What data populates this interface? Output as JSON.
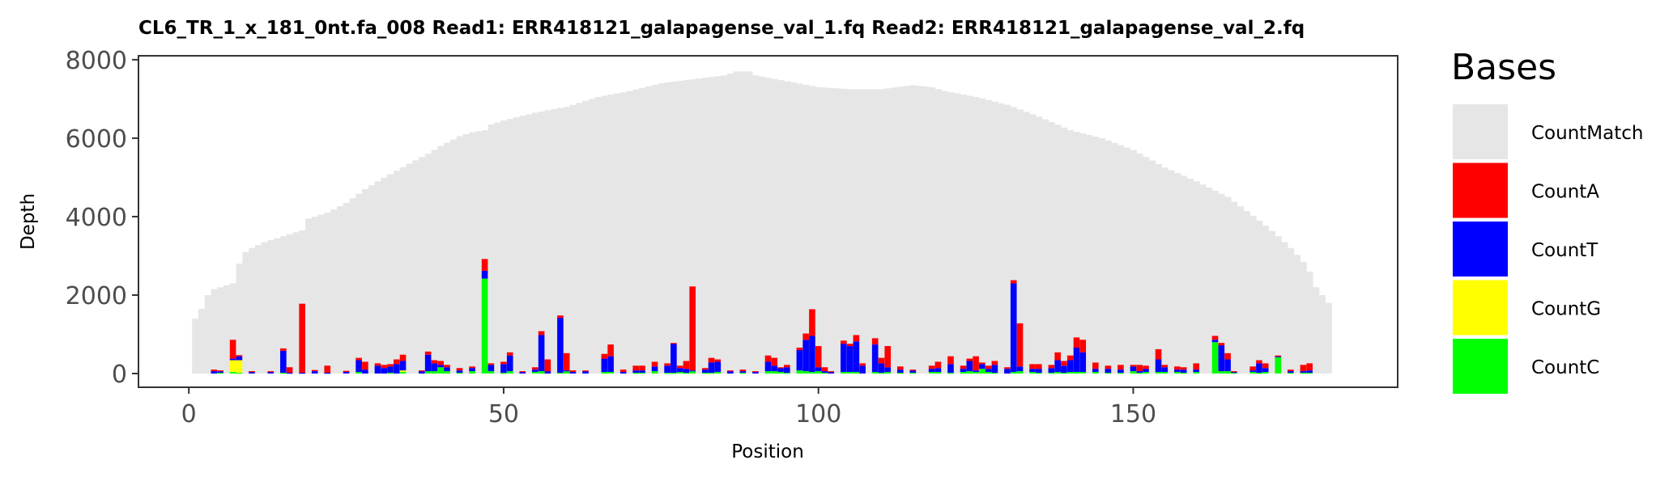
{
  "chart_data": {
    "type": "bar",
    "stacked": true,
    "title": "CL6_TR_1_x_181_0nt.fa_008   Read1: ERR418121_galapagense_val_1.fq   Read2: ERR418121_galapagense_val_2.fq",
    "xlabel": "Position",
    "ylabel": "Depth",
    "xlim": [
      -8,
      192
    ],
    "ylim": [
      -350,
      8100
    ],
    "x_ticks": [
      0,
      50,
      100,
      150
    ],
    "y_ticks": [
      0,
      2000,
      4000,
      6000,
      8000
    ],
    "grid": false,
    "legend": {
      "title": "Bases",
      "position": "right",
      "entries": [
        {
          "label": "CountMatch",
          "color": "#e6e6e6"
        },
        {
          "label": "CountA",
          "color": "#ff0000"
        },
        {
          "label": "CountT",
          "color": "#0000ff"
        },
        {
          "label": "CountG",
          "color": "#ffff00"
        },
        {
          "label": "CountC",
          "color": "#00ff00"
        }
      ]
    },
    "match_profile": {
      "x": [
        1,
        2,
        3,
        4,
        5,
        6,
        7,
        8,
        9,
        10,
        12,
        15,
        18,
        19,
        22,
        25,
        28,
        30,
        35,
        38,
        40,
        43,
        45,
        47,
        48,
        50,
        55,
        60,
        62,
        65,
        70,
        75,
        80,
        85,
        87,
        89,
        90,
        95,
        100,
        105,
        110,
        115,
        118,
        120,
        125,
        130,
        135,
        140,
        145,
        150,
        155,
        160,
        165,
        170,
        173,
        175,
        177,
        178,
        179,
        180,
        181
      ],
      "y": [
        1400,
        1650,
        2000,
        2150,
        2200,
        2250,
        2300,
        2800,
        3100,
        3200,
        3350,
        3500,
        3650,
        3950,
        4100,
        4350,
        4700,
        4900,
        5350,
        5600,
        5800,
        6050,
        6150,
        6200,
        6350,
        6450,
        6650,
        6800,
        6900,
        7050,
        7200,
        7400,
        7500,
        7600,
        7700,
        7700,
        7600,
        7450,
        7300,
        7250,
        7250,
        7350,
        7300,
        7200,
        7050,
        6850,
        6550,
        6200,
        6000,
        5700,
        5250,
        4900,
        4500,
        3900,
        3500,
        3200,
        2850,
        2600,
        2200,
        2000,
        1800
      ]
    },
    "mismatch_positions": {
      "x": [
        4,
        5,
        7,
        8,
        10,
        13,
        15,
        16,
        18,
        20,
        22,
        25,
        27,
        28,
        30,
        31,
        32,
        33,
        34,
        37,
        38,
        39,
        40,
        41,
        43,
        45,
        47,
        48,
        50,
        51,
        53,
        55,
        56,
        57,
        59,
        60,
        61,
        63,
        66,
        67,
        69,
        71,
        72,
        74,
        76,
        77,
        78,
        79,
        80,
        82,
        83,
        84,
        86,
        88,
        90,
        92,
        93,
        94,
        95,
        97,
        98,
        99,
        100,
        101,
        102,
        104,
        105,
        106,
        107,
        109,
        110,
        111,
        113,
        115,
        118,
        119,
        121,
        123,
        124,
        125,
        126,
        127,
        128,
        130,
        131,
        132,
        134,
        135,
        137,
        138,
        139,
        140,
        141,
        142,
        144,
        146,
        148,
        150,
        151,
        152,
        154,
        155,
        157,
        158,
        160,
        163,
        164,
        165,
        166,
        169,
        170,
        171,
        173,
        175,
        177,
        178
      ],
      "A": [
        40,
        20,
        480,
        30,
        20,
        20,
        60,
        140,
        1760,
        30,
        180,
        30,
        60,
        200,
        60,
        80,
        60,
        120,
        160,
        20,
        80,
        80,
        100,
        60,
        60,
        40,
        300,
        40,
        60,
        80,
        20,
        60,
        100,
        300,
        60,
        440,
        40,
        20,
        120,
        300,
        60,
        120,
        120,
        120,
        60,
        20,
        60,
        200,
        2140,
        40,
        120,
        60,
        20,
        40,
        20,
        160,
        200,
        20,
        60,
        60,
        160,
        680,
        540,
        100,
        20,
        80,
        60,
        160,
        60,
        160,
        140,
        540,
        80,
        20,
        80,
        160,
        200,
        80,
        60,
        360,
        40,
        80,
        100,
        40,
        80,
        1100,
        120,
        120,
        80,
        200,
        120,
        120,
        260,
        320,
        160,
        80,
        120,
        40,
        160,
        80,
        260,
        60,
        80,
        60,
        160,
        100,
        60,
        160,
        20,
        100,
        80,
        120,
        20,
        40,
        160,
        180
      ],
      "T": [
        60,
        40,
        40,
        100,
        40,
        40,
        560,
        20,
        20,
        60,
        20,
        40,
        300,
        100,
        200,
        140,
        160,
        240,
        240,
        60,
        420,
        200,
        60,
        100,
        60,
        80,
        200,
        160,
        220,
        400,
        40,
        60,
        920,
        60,
        1400,
        20,
        40,
        60,
        340,
        400,
        40,
        60,
        60,
        120,
        180,
        740,
        100,
        100,
        20,
        80,
        260,
        260,
        60,
        40,
        40,
        240,
        140,
        100,
        140,
        520,
        800,
        920,
        100,
        40,
        40,
        720,
        660,
        780,
        200,
        700,
        240,
        120,
        80,
        60,
        80,
        100,
        220,
        80,
        260,
        40,
        120,
        80,
        200,
        120,
        2260,
        120,
        80,
        100,
        120,
        300,
        180,
        300,
        620,
        500,
        80,
        100,
        80,
        120,
        40,
        80,
        320,
        120,
        60,
        80,
        60,
        60,
        660,
        300,
        20,
        40,
        240,
        100,
        20,
        40,
        40,
        60
      ],
      "G": [
        0,
        0,
        300,
        320,
        0,
        0,
        0,
        0,
        0,
        0,
        0,
        0,
        0,
        0,
        0,
        0,
        0,
        0,
        40,
        0,
        0,
        0,
        0,
        0,
        0,
        0,
        0,
        0,
        0,
        0,
        0,
        0,
        0,
        0,
        0,
        0,
        0,
        0,
        0,
        0,
        0,
        0,
        0,
        0,
        0,
        0,
        0,
        0,
        0,
        0,
        0,
        0,
        0,
        0,
        0,
        0,
        0,
        0,
        0,
        0,
        0,
        0,
        0,
        0,
        0,
        0,
        0,
        0,
        0,
        0,
        0,
        0,
        0,
        0,
        0,
        0,
        0,
        0,
        0,
        0,
        0,
        0,
        0,
        0,
        0,
        0,
        0,
        0,
        0,
        0,
        0,
        0,
        0,
        0,
        0,
        0,
        0,
        0,
        0,
        0,
        0,
        0,
        0,
        0,
        0,
        0,
        0,
        0,
        0,
        0,
        0,
        0,
        0,
        0,
        0,
        0
      ],
      "C": [
        0,
        20,
        40,
        20,
        0,
        0,
        20,
        0,
        0,
        0,
        0,
        0,
        40,
        0,
        0,
        0,
        20,
        0,
        40,
        0,
        60,
        60,
        160,
        60,
        20,
        60,
        2420,
        60,
        20,
        60,
        0,
        40,
        60,
        0,
        20,
        60,
        0,
        0,
        40,
        40,
        0,
        20,
        20,
        60,
        20,
        20,
        40,
        20,
        60,
        20,
        20,
        40,
        0,
        20,
        0,
        60,
        60,
        40,
        20,
        80,
        60,
        40,
        60,
        20,
        0,
        40,
        40,
        40,
        0,
        40,
        20,
        40,
        20,
        20,
        40,
        40,
        20,
        40,
        60,
        40,
        120,
        40,
        20,
        0,
        40,
        60,
        40,
        20,
        20,
        40,
        20,
        40,
        40,
        40,
        40,
        20,
        20,
        60,
        20,
        40,
        40,
        40,
        40,
        20,
        40,
        800,
        60,
        60,
        20,
        40,
        20,
        40,
        420,
        20,
        20,
        20
      ]
    }
  }
}
